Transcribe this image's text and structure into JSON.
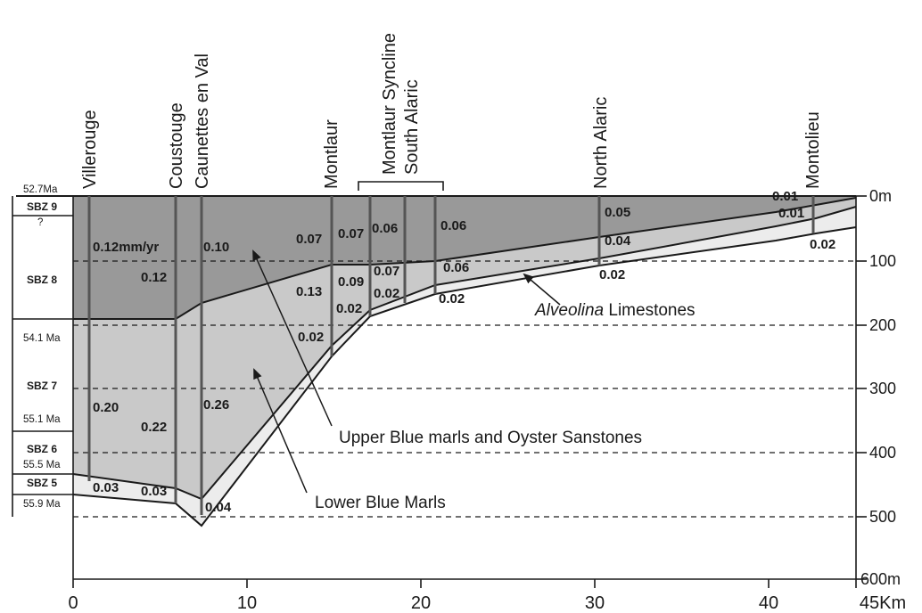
{
  "colors": {
    "upper_unit": "#999999",
    "lower_unit": "#c9c9c9",
    "limestone": "#ececec",
    "background": "#ffffff",
    "line": "#1a1a1a",
    "well_line": "#555555"
  },
  "x_axis": {
    "unit_label": "Km",
    "ticks": [
      {
        "value": 0,
        "label": "0"
      },
      {
        "value": 10,
        "label": "10"
      },
      {
        "value": 20,
        "label": "20"
      },
      {
        "value": 30,
        "label": "30"
      },
      {
        "value": 40,
        "label": "40"
      },
      {
        "value": 45,
        "label": "45Km"
      }
    ]
  },
  "depth_axis": {
    "ticks": [
      {
        "value": 0,
        "label": "0m"
      },
      {
        "value": 100,
        "label": "100"
      },
      {
        "value": 200,
        "label": "200"
      },
      {
        "value": 300,
        "label": "300"
      },
      {
        "value": 400,
        "label": "400"
      },
      {
        "value": 500,
        "label": "500"
      },
      {
        "value": 600,
        "label": "600m"
      }
    ]
  },
  "biozones": [
    {
      "id": "sbz9",
      "label": "SBZ 9"
    },
    {
      "id": "sbz8",
      "label": "SBZ 8"
    },
    {
      "id": "sbz7",
      "label": "SBZ 7"
    },
    {
      "id": "sbz6",
      "label": "SBZ 6"
    },
    {
      "id": "sbz5",
      "label": "SBZ 5"
    }
  ],
  "ages": [
    {
      "id": "age-52-7",
      "label": "52.7Ma"
    },
    {
      "id": "age-q",
      "label": "?"
    },
    {
      "id": "age-54-1",
      "label": "54.1 Ma"
    },
    {
      "id": "age-55-1",
      "label": "55.1 Ma"
    },
    {
      "id": "age-55-5",
      "label": "55.5 Ma"
    },
    {
      "id": "age-55-9",
      "label": "55.9 Ma"
    }
  ],
  "locations": [
    {
      "id": "villerouge",
      "label": "Villerouge",
      "km": 1.0
    },
    {
      "id": "coustouge",
      "label": "Coustouge",
      "km": 6.0
    },
    {
      "id": "caunettes",
      "label": "Caunettes en Val",
      "km": 7.5
    },
    {
      "id": "montlaur",
      "label": "Montlaur",
      "km": 15.0
    },
    {
      "id": "montlaur-syncline",
      "label": "Montlaur Syncline",
      "km": 17.2
    },
    {
      "id": "south-alaric",
      "label": "South Alaric",
      "km": 19.0
    },
    {
      "id": "north-alaric",
      "label": "North Alaric",
      "km": 30.5
    },
    {
      "id": "montolieu",
      "label": "Montolieu",
      "km": 42.7
    }
  ],
  "unit_labels": {
    "alveolina_italic": "Alveolina",
    "alveolina_rest": " Limestones",
    "upper_blue_marls": "Upper Blue marls and Oyster Sanstones",
    "lower_blue_marls": "Lower Blue Marls"
  },
  "rates": {
    "villerouge_upper": "0.12mm/yr",
    "villerouge_lower": "0.20",
    "villerouge_limestone": "0.03",
    "coustouge_upper": "0.12",
    "coustouge_lower": "0.22",
    "coustouge_limestone": "0.03",
    "caunettes_upper": "0.10",
    "caunettes_lower": "0.26",
    "caunettes_limestone": "0.04",
    "montlaur_upper": "0.07",
    "montlaur_lower": "0.13",
    "montlaur_limestone": "0.02",
    "syncline_upper": "0.07",
    "syncline_lower": "0.09",
    "syncline_limestone": "0.02",
    "south_alaric_upper": "0.06",
    "south_alaric_lower": "0.07",
    "south_alaric_limestone": "0.02",
    "alaric_mid_upper": "0.06",
    "alaric_mid_lower": "0.06",
    "alaric_mid_limestone": "0.02",
    "north_alaric_upper": "0.05",
    "north_alaric_lower": "0.04",
    "north_alaric_limestone": "0.02",
    "montolieu_upper": "0.01",
    "montolieu_lower": "0.01",
    "montolieu_limestone": "0.02"
  }
}
